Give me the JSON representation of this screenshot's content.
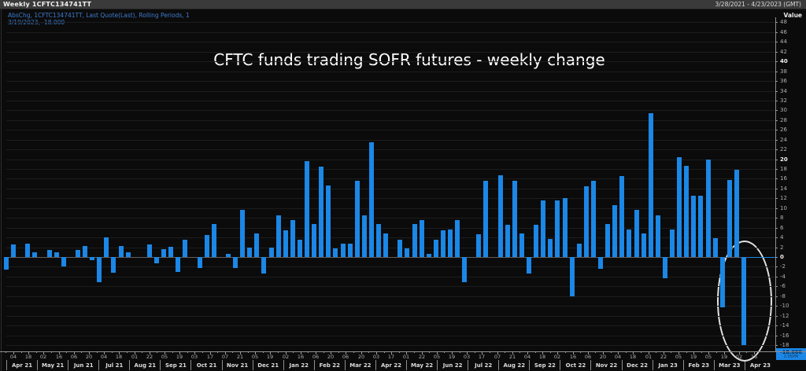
{
  "header": {
    "title": "Weekly 1CFTC134741TT",
    "date_range": "3/28/2021 - 4/23/2023 (GMT)"
  },
  "legend": {
    "line1": "AbsChg, 1CFTC134741TT, Last Quote(Last), Rolling Periods, 1",
    "line2": "3/19/2023, -18.000"
  },
  "axis": {
    "value_label": "Value"
  },
  "badge": {
    "value": "-18.000",
    "time": "2:05PM"
  },
  "colors": {
    "bar": "#1b87e6",
    "background": "#0b0b0b",
    "legend_text": "#3e7cd0",
    "badge_bg": "#1b87e6"
  },
  "chart_data": {
    "type": "bar",
    "title": "CFTC funds trading SOFR futures - weekly change",
    "xlabel": "",
    "ylabel": "Value",
    "ylim": [
      -19.3,
      49
    ],
    "grid": true,
    "grid_step": 2,
    "ytick_min": -18,
    "ytick_max": 48,
    "bold_yticks": [
      40,
      20,
      0
    ],
    "legend_position": "top-left",
    "annotation": "white ellipse circling final bar (-18.000, 3/19/2023)",
    "last_value": -18.0,
    "values": [
      -2.5,
      2.6,
      0,
      2.7,
      1.0,
      0,
      1.5,
      1.0,
      -2.0,
      0,
      1.5,
      2.3,
      -0.6,
      -5.2,
      4.0,
      -3.2,
      2.2,
      0.9,
      0,
      0,
      2.6,
      -1.3,
      1.6,
      2.1,
      -3.1,
      3.6,
      0,
      -2.3,
      4.5,
      6.7,
      0,
      0.7,
      -2.2,
      9.7,
      1.9,
      4.9,
      -3.4,
      1.9,
      8.6,
      5.4,
      7.6,
      3.6,
      19.6,
      6.7,
      18.5,
      14.6,
      1.7,
      2.7,
      2.7,
      15.6,
      8.6,
      23.5,
      6.7,
      4.8,
      0,
      3.6,
      1.7,
      6.7,
      7.6,
      0.7,
      3.5,
      5.5,
      5.6,
      7.6,
      -5.1,
      0,
      4.7,
      15.6,
      0,
      16.7,
      6.6,
      15.6,
      4.8,
      -3.4,
      6.6,
      11.6,
      3.7,
      11.6,
      12.0,
      -8.1,
      2.8,
      14.4,
      15.6,
      -2.4,
      6.7,
      10.6,
      16.6,
      5.7,
      9.7,
      4.8,
      29.4,
      8.6,
      -4.3,
      5.7,
      20.4,
      18.6,
      12.5,
      12.5,
      20.0,
      3.8,
      -10.3,
      15.8,
      17.8,
      -18.0
    ],
    "x_day_labels": [
      "04",
      "18",
      "02",
      "16",
      "06",
      "20",
      "04",
      "18",
      "01",
      "22",
      "05",
      "19",
      "03",
      "17",
      "07",
      "21",
      "05",
      "19",
      "02",
      "16",
      "06",
      "20",
      "06",
      "20",
      "03",
      "17",
      "01",
      "22",
      "05",
      "19",
      "03",
      "17",
      "07",
      "21",
      "04",
      "18",
      "02",
      "16",
      "06",
      "20",
      "04",
      "18",
      "01",
      "22",
      "05",
      "19",
      "05",
      "19",
      "02",
      "16"
    ],
    "x_month_labels": [
      "Apr 21",
      "May 21",
      "Jun 21",
      "Jul 21",
      "Aug 21",
      "Sep 21",
      "Oct 21",
      "Nov 21",
      "Dec 21",
      "Jan 22",
      "Feb 22",
      "Mar 22",
      "Apr 22",
      "May 22",
      "Jun 22",
      "Jul 22",
      "Aug 22",
      "Sep 22",
      "Oct 22",
      "Nov 22",
      "Dec 22",
      "Jan 23",
      "Feb 23",
      "Mar 23",
      "Apr 23"
    ]
  }
}
